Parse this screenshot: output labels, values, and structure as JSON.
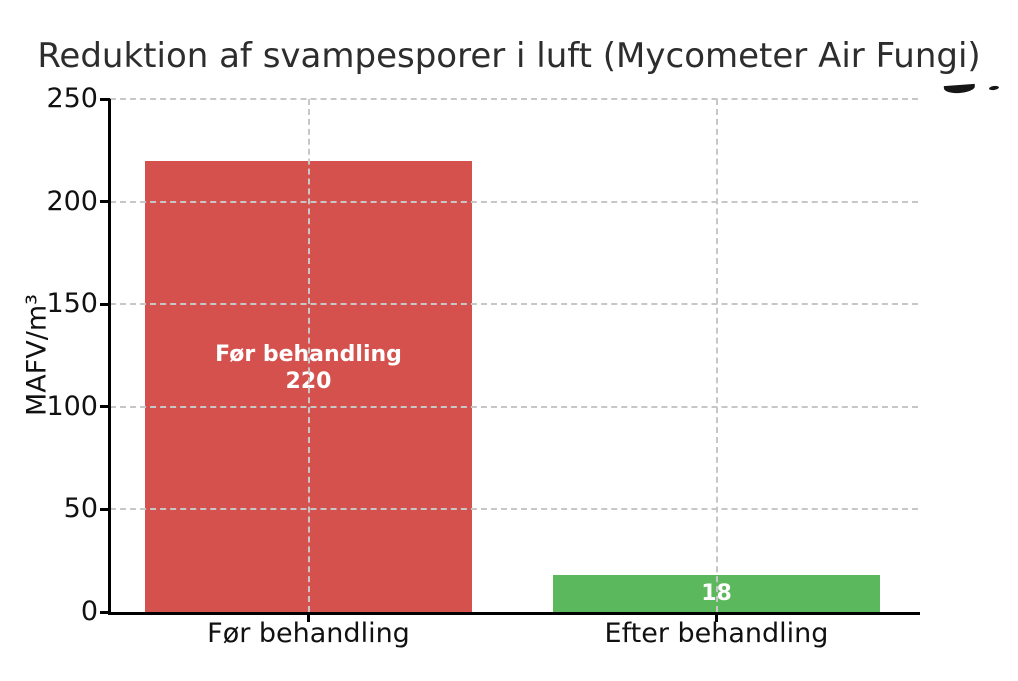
{
  "chart_data": {
    "type": "bar",
    "title": "Reduktion af svampesporer i luft (Mycometer Air Fungi)",
    "ylabel": "MAFV/m³",
    "xlabel": "",
    "categories": [
      "Før behandling",
      "Efter behandling"
    ],
    "values": [
      220,
      18
    ],
    "bar_colors": [
      "#d4514e",
      "#5cb85c"
    ],
    "bar_value_labels": [
      [
        "Før behandling",
        "220"
      ],
      [
        "18"
      ]
    ],
    "yticks": [
      0,
      50,
      100,
      150,
      200,
      250
    ],
    "ylim": [
      0,
      250
    ],
    "grid": {
      "style": "dashed",
      "color": "#c7c7c7",
      "horizontal": true,
      "vertical_at_bar_centers": true
    },
    "legend": "none",
    "axis_color": "#000000",
    "bar_label_text_color": "#ffffff"
  }
}
